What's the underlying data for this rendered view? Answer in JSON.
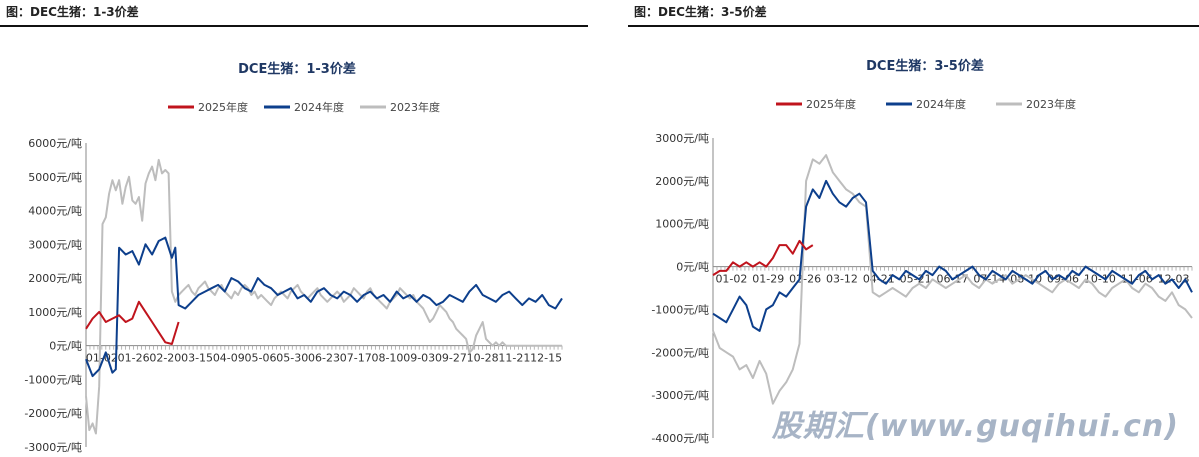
{
  "left": {
    "caption": "图：DEC生猪：1-3价差",
    "chart_data": {
      "type": "line",
      "title": "DCE生猪：1-3价差",
      "legend_position": "top",
      "yticks": [
        "6000元/吨",
        "5000元/吨",
        "4000元/吨",
        "3000元/吨",
        "2000元/吨",
        "1000元/吨",
        "0元/吨",
        "-1000元/吨",
        "-2000元/吨",
        "-3000元/吨"
      ],
      "ylim": [
        -3000,
        6000
      ],
      "xticks": [
        "01-02",
        "01-26",
        "02-20",
        "03-15",
        "04-09",
        "05-06",
        "05-30",
        "06-23",
        "07-17",
        "08-10",
        "09-03",
        "09-27",
        "10-28",
        "11-21",
        "12-15"
      ],
      "colors": {
        "2025年度": "#c0141d",
        "2024年度": "#0d3f8c",
        "2023年度": "#bdbdbd"
      },
      "series": [
        {
          "name": "2023年度",
          "x": [
            0,
            1,
            2,
            3,
            4,
            5,
            6,
            7,
            8,
            9,
            10,
            11,
            12,
            13,
            14,
            15,
            16,
            17,
            18,
            19,
            20,
            21,
            22,
            23,
            24,
            25,
            26,
            27,
            28,
            29,
            30,
            31,
            32,
            33,
            34,
            35,
            36,
            37,
            38,
            39,
            40,
            41,
            42,
            43,
            44,
            45,
            46,
            47,
            48,
            49,
            50,
            51,
            52,
            53,
            54,
            55,
            56,
            57,
            58,
            59,
            60,
            61,
            62,
            63,
            64,
            65,
            66,
            67,
            68,
            69,
            70,
            71,
            72,
            73,
            74,
            75,
            76,
            77,
            78,
            79,
            80,
            81,
            82,
            83,
            84,
            85,
            86,
            87,
            88,
            89,
            90,
            91,
            92,
            93,
            94,
            95,
            96,
            97,
            98,
            99,
            100,
            101,
            102,
            103,
            104,
            105,
            106,
            107,
            108,
            109,
            110,
            111,
            112,
            113,
            114,
            115,
            116,
            117,
            118,
            119,
            120,
            121,
            122,
            123,
            124,
            125,
            126,
            127,
            128,
            129,
            130,
            131,
            132,
            133,
            134,
            135,
            136,
            137,
            138,
            139,
            140,
            141,
            142,
            143,
            144
          ],
          "values": [
            -1500,
            -2500,
            -2300,
            -2600,
            -1200,
            3600,
            3800,
            4500,
            4900,
            4600,
            4900,
            4200,
            4700,
            5000,
            4300,
            4200,
            4400,
            3700,
            4800,
            5100,
            5300,
            4900,
            5500,
            5100,
            5200,
            5100,
            1600,
            1300,
            1500,
            1600,
            1700,
            1800,
            1600,
            1500,
            1700,
            1800,
            1900,
            1700,
            1600,
            1500,
            1700,
            1800,
            1600,
            1500,
            1400,
            1600,
            1500,
            1700,
            1800,
            1700,
            1500,
            1600,
            1400,
            1500,
            1400,
            1300,
            1200,
            1400,
            1500,
            1600,
            1500,
            1400,
            1600,
            1700,
            1800,
            1600,
            1500,
            1400,
            1500,
            1600,
            1700,
            1500,
            1400,
            1300,
            1400,
            1500,
            1600,
            1500,
            1300,
            1400,
            1500,
            1700,
            1600,
            1500,
            1400,
            1600,
            1700,
            1500,
            1400,
            1300,
            1200,
            1100,
            1300,
            1400,
            1500,
            1700,
            1600,
            1500,
            1400,
            1500,
            1300,
            1200,
            1100,
            900,
            700,
            800,
            1000,
            1200,
            1100,
            1000,
            800,
            700,
            500,
            400,
            300,
            200,
            -200,
            -100,
            300,
            500,
            700,
            200,
            100,
            0,
            100,
            0,
            100,
            0,
            0,
            0,
            0,
            0,
            0,
            0,
            0,
            0,
            0,
            0,
            0,
            0,
            0,
            0,
            0,
            0,
            0
          ]
        },
        {
          "name": "2024年度",
          "x": [
            0,
            2,
            4,
            6,
            8,
            9,
            10,
            12,
            14,
            16,
            18,
            20,
            22,
            24,
            26,
            27,
            28,
            30,
            32,
            34,
            36,
            38,
            40,
            42,
            44,
            46,
            48,
            50,
            52,
            54,
            56,
            58,
            60,
            62,
            64,
            66,
            68,
            70,
            72,
            74,
            76,
            78,
            80,
            82,
            84,
            86,
            88,
            90,
            92,
            94,
            96,
            98,
            100,
            102,
            104,
            106,
            108,
            110,
            112,
            114,
            116,
            118,
            120,
            122,
            124,
            126,
            128,
            130,
            132,
            134,
            136,
            138,
            140,
            142,
            144
          ],
          "values": [
            -400,
            -900,
            -700,
            -200,
            -800,
            -700,
            2900,
            2700,
            2800,
            2400,
            3000,
            2700,
            3100,
            3200,
            2600,
            2900,
            1200,
            1100,
            1300,
            1500,
            1600,
            1700,
            1800,
            1600,
            2000,
            1900,
            1700,
            1600,
            2000,
            1800,
            1700,
            1500,
            1600,
            1700,
            1400,
            1500,
            1300,
            1600,
            1700,
            1500,
            1400,
            1600,
            1500,
            1300,
            1500,
            1600,
            1400,
            1500,
            1300,
            1600,
            1400,
            1500,
            1300,
            1500,
            1400,
            1200,
            1300,
            1500,
            1400,
            1300,
            1600,
            1800,
            1500,
            1400,
            1300,
            1500,
            1600,
            1400,
            1200,
            1400,
            1300,
            1500,
            1200,
            1100,
            1400
          ]
        },
        {
          "name": "2025年度",
          "x": [
            0,
            2,
            4,
            6,
            8,
            10,
            12,
            14,
            16,
            18,
            20,
            22,
            24,
            26,
            28
          ],
          "values": [
            500,
            800,
            1000,
            700,
            800,
            900,
            700,
            800,
            1300,
            1000,
            700,
            400,
            100,
            50,
            700
          ]
        }
      ]
    }
  },
  "right": {
    "caption": "图：DEC生猪：3-5价差",
    "chart_data": {
      "type": "line",
      "title": "DCE生猪：3-5价差",
      "legend_position": "top",
      "yticks": [
        "3000元/吨",
        "2000元/吨",
        "1000元/吨",
        "0元/吨",
        "-1000元/吨",
        "-2000元/吨",
        "-3000元/吨",
        "-4000元/吨"
      ],
      "ylim": [
        -4000,
        3000
      ],
      "xticks": [
        "01-02",
        "01-29",
        "02-26",
        "03-12",
        "04-21",
        "05-21",
        "06-17",
        "07-14",
        "08-10",
        "09-06",
        "10-10",
        "11-06",
        "12-03"
      ],
      "colors": {
        "2025年度": "#c0141d",
        "2024年度": "#0d3f8c",
        "2023年度": "#bdbdbd"
      },
      "series": [
        {
          "name": "2023年度",
          "x": [
            0,
            2,
            4,
            6,
            8,
            10,
            12,
            14,
            16,
            18,
            20,
            22,
            24,
            26,
            28,
            30,
            32,
            34,
            36,
            38,
            40,
            42,
            44,
            46,
            48,
            50,
            52,
            54,
            56,
            58,
            60,
            62,
            64,
            66,
            68,
            70,
            72,
            74,
            76,
            78,
            80,
            82,
            84,
            86,
            88,
            90,
            92,
            94,
            96,
            98,
            100,
            102,
            104,
            106,
            108,
            110,
            112,
            114,
            116,
            118,
            120,
            122,
            124,
            126,
            128,
            130,
            132,
            134,
            136,
            138,
            140,
            142,
            144
          ],
          "values": [
            -1500,
            -1900,
            -2000,
            -2100,
            -2400,
            -2300,
            -2600,
            -2200,
            -2500,
            -3200,
            -2900,
            -2700,
            -2400,
            -1800,
            2000,
            2500,
            2400,
            2600,
            2200,
            2000,
            1800,
            1700,
            1500,
            1400,
            -600,
            -700,
            -600,
            -500,
            -600,
            -700,
            -500,
            -400,
            -500,
            -300,
            -400,
            -500,
            -400,
            -300,
            -200,
            -400,
            -500,
            -300,
            -400,
            -300,
            -200,
            -400,
            -300,
            -200,
            -300,
            -400,
            -500,
            -600,
            -400,
            -300,
            -400,
            -500,
            -300,
            -400,
            -600,
            -700,
            -500,
            -400,
            -300,
            -500,
            -600,
            -400,
            -500,
            -700,
            -800,
            -600,
            -900,
            -1000,
            -1200
          ]
        },
        {
          "name": "2024年度",
          "x": [
            0,
            2,
            4,
            6,
            8,
            10,
            12,
            14,
            16,
            18,
            20,
            22,
            24,
            26,
            28,
            30,
            32,
            34,
            36,
            38,
            40,
            42,
            44,
            46,
            48,
            50,
            52,
            54,
            56,
            58,
            60,
            62,
            64,
            66,
            68,
            70,
            72,
            74,
            76,
            78,
            80,
            82,
            84,
            86,
            88,
            90,
            92,
            94,
            96,
            98,
            100,
            102,
            104,
            106,
            108,
            110,
            112,
            114,
            116,
            118,
            120,
            122,
            124,
            126,
            128,
            130,
            132,
            134,
            136,
            138,
            140,
            142,
            144
          ],
          "values": [
            -1100,
            -1200,
            -1300,
            -1000,
            -700,
            -900,
            -1400,
            -1500,
            -1000,
            -900,
            -600,
            -700,
            -500,
            -300,
            1400,
            1800,
            1600,
            2000,
            1700,
            1500,
            1400,
            1600,
            1700,
            1500,
            -100,
            -300,
            -400,
            -200,
            -300,
            -100,
            -200,
            -300,
            -100,
            -200,
            0,
            -100,
            -300,
            -200,
            -100,
            0,
            -200,
            -300,
            -100,
            -200,
            -300,
            -100,
            -200,
            -300,
            -400,
            -200,
            -100,
            -300,
            -200,
            -300,
            -100,
            -200,
            0,
            -100,
            -200,
            -300,
            -100,
            -200,
            -300,
            -400,
            -200,
            -100,
            -300,
            -200,
            -400,
            -300,
            -500,
            -300,
            -600
          ]
        },
        {
          "name": "2025年度",
          "x": [
            0,
            2,
            4,
            6,
            8,
            10,
            12,
            14,
            16,
            18,
            20,
            22,
            24,
            26,
            28,
            30
          ],
          "values": [
            -200,
            -100,
            -100,
            100,
            0,
            100,
            0,
            100,
            0,
            200,
            500,
            500,
            300,
            600,
            400,
            500
          ]
        }
      ]
    }
  },
  "watermark": "股期汇(www.guqihui.cn)"
}
